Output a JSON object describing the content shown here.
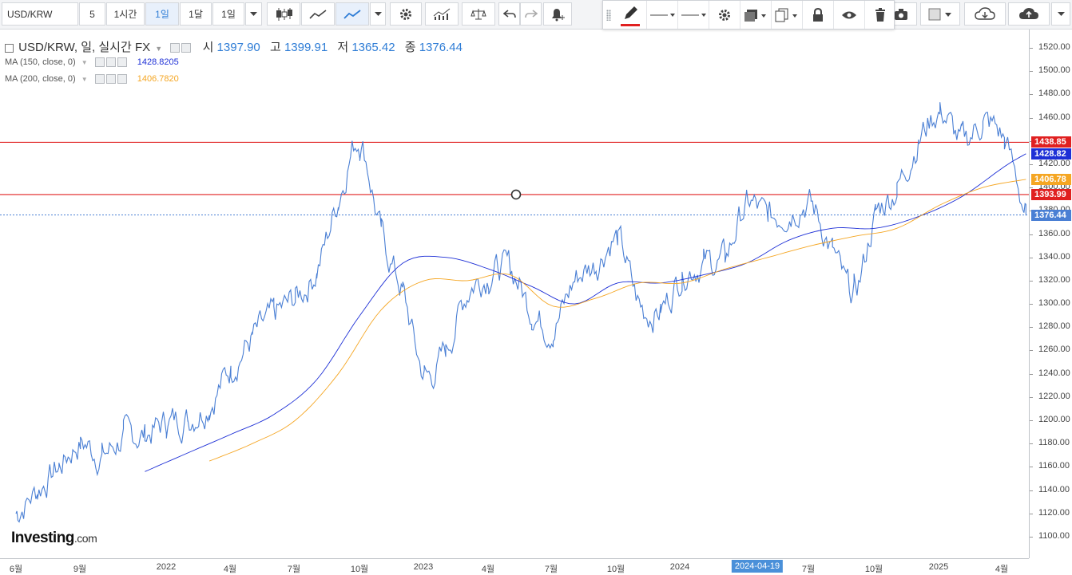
{
  "toolbar": {
    "symbol": "USD/KRW",
    "interval_value": "5",
    "buttons": [
      "1시간",
      "1일",
      "1달",
      "1일"
    ],
    "active_index": 1
  },
  "legend": {
    "title": "USD/KRW, 일, 실시간 FX",
    "ohlc": [
      {
        "label": "시",
        "value": "1397.90"
      },
      {
        "label": "고",
        "value": "1399.91"
      },
      {
        "label": "저",
        "value": "1365.42"
      },
      {
        "label": "종",
        "value": "1376.44"
      }
    ],
    "ma150_label": "MA (150, close, 0)",
    "ma150_value": "1428.8205",
    "ma200_label": "MA (200, close, 0)",
    "ma200_value": "1406.7820"
  },
  "colors": {
    "price": "#4a7fd4",
    "ma150": "#1d2fd6",
    "ma200": "#f5a623",
    "hline": "#e02020",
    "last": "#4a7fd4"
  },
  "logo": {
    "main": "Investing",
    "suffix": ".com"
  },
  "chart_data": {
    "type": "line",
    "title": "USD/KRW, 일, 실시간 FX",
    "ylim": [
      1090,
      1530
    ],
    "y_ticks": [
      1100,
      1120,
      1140,
      1160,
      1180,
      1200,
      1220,
      1240,
      1260,
      1280,
      1300,
      1320,
      1340,
      1360,
      1380,
      1400,
      1420,
      1440,
      1460,
      1480,
      1500,
      1520
    ],
    "x_tick_labels": [
      "6월",
      "9월",
      "2022",
      "4월",
      "7월",
      "10월",
      "2023",
      "4월",
      "7월",
      "10월",
      "2024",
      "2024-04-19",
      "7월",
      "10월",
      "2025",
      "4월"
    ],
    "highlighted_x_label": "2024-04-19",
    "price_labels": {
      "hline_upper": "1438.85",
      "ma150": "1428.82",
      "ma200": "1406.78",
      "hline_lower": "1393.99",
      "last": "1376.44"
    },
    "horizontal_lines": [
      1438.85,
      1393.99
    ],
    "last_price": 1376.44,
    "series": [
      {
        "name": "USD/KRW",
        "x": [
          "2021-06",
          "2021-07",
          "2021-08",
          "2021-09",
          "2021-10",
          "2021-11",
          "2021-12",
          "2022-01",
          "2022-02",
          "2022-03",
          "2022-04",
          "2022-05",
          "2022-06",
          "2022-07",
          "2022-08",
          "2022-09",
          "2022-10",
          "2022-11",
          "2022-12",
          "2023-01",
          "2023-02",
          "2023-03",
          "2023-04",
          "2023-05",
          "2023-06",
          "2023-07",
          "2023-08",
          "2023-09",
          "2023-10",
          "2023-11",
          "2023-12",
          "2024-01",
          "2024-02",
          "2024-03",
          "2024-04",
          "2024-05",
          "2024-06",
          "2024-07",
          "2024-08",
          "2024-09",
          "2024-10",
          "2024-11",
          "2024-12",
          "2025-01",
          "2025-02",
          "2025-03",
          "2025-04",
          "2025-05"
        ],
        "values": [
          1120,
          1140,
          1160,
          1180,
          1170,
          1185,
          1188,
          1198,
          1202,
          1215,
          1245,
          1270,
          1290,
          1305,
          1330,
          1390,
          1440,
          1360,
          1310,
          1240,
          1260,
          1310,
          1325,
          1330,
          1295,
          1280,
          1320,
          1335,
          1355,
          1300,
          1295,
          1325,
          1335,
          1340,
          1385,
          1375,
          1380,
          1385,
          1345,
          1310,
          1375,
          1400,
          1440,
          1465,
          1440,
          1455,
          1440,
          1376
        ]
      },
      {
        "name": "MA (150, close, 0)",
        "x": [
          "2021-12",
          "2022-02",
          "2022-04",
          "2022-06",
          "2022-08",
          "2022-10",
          "2022-12",
          "2023-02",
          "2023-04",
          "2023-06",
          "2023-08",
          "2023-10",
          "2023-12",
          "2024-02",
          "2024-04",
          "2024-06",
          "2024-08",
          "2024-10",
          "2024-12",
          "2025-02",
          "2025-04",
          "2025-05"
        ],
        "values": [
          1156,
          1172,
          1188,
          1205,
          1235,
          1290,
          1335,
          1340,
          1330,
          1315,
          1300,
          1318,
          1318,
          1325,
          1335,
          1355,
          1365,
          1365,
          1375,
          1392,
          1418,
          1429
        ]
      },
      {
        "name": "MA (200, close, 0)",
        "x": [
          "2022-03",
          "2022-05",
          "2022-07",
          "2022-09",
          "2022-11",
          "2023-01",
          "2023-03",
          "2023-05",
          "2023-07",
          "2023-09",
          "2023-11",
          "2024-01",
          "2024-03",
          "2024-05",
          "2024-07",
          "2024-09",
          "2024-11",
          "2025-01",
          "2025-03",
          "2025-05"
        ],
        "values": [
          1165,
          1180,
          1200,
          1240,
          1295,
          1320,
          1320,
          1325,
          1298,
          1305,
          1318,
          1318,
          1330,
          1340,
          1350,
          1358,
          1365,
          1385,
          1400,
          1407
        ]
      }
    ]
  }
}
